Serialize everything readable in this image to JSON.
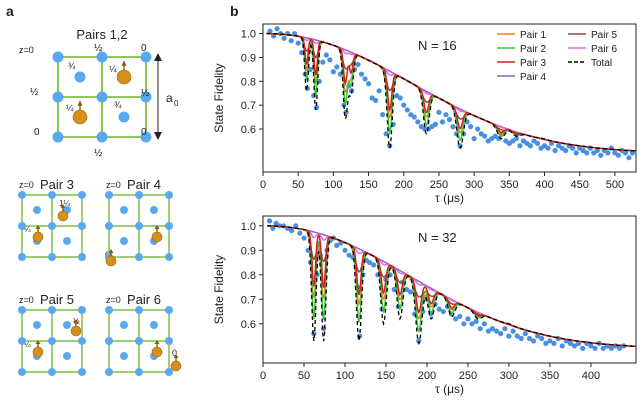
{
  "panel_a": {
    "label": "a",
    "top_title": "Pairs 1,2",
    "top_labels": {
      "z0": "z=0",
      "half": "½",
      "zero": "0",
      "q3": "¾",
      "q1": "¼",
      "q14": "1¼"
    },
    "lattice_const": "a",
    "lattice_sub": "0",
    "pairs": [
      {
        "title": "Pair 3",
        "z0": "z=0",
        "labels": [
          "1¼",
          "¼"
        ]
      },
      {
        "title": "Pair 4",
        "z0": "z=0",
        "labels": [
          "0"
        ]
      },
      {
        "title": "Pair 5",
        "z0": "z=0",
        "labels": [
          "½",
          "¼"
        ]
      },
      {
        "title": "Pair 6",
        "z0": "z=0",
        "labels": [
          "0"
        ]
      }
    ]
  },
  "panel_b": {
    "label": "b"
  },
  "colors": {
    "scatter": "#4a90e2",
    "lattice_line": "#7cc043",
    "atom": "#5aa9f0",
    "spin": "#d4901a",
    "pair1": "#f07f1d",
    "pair2": "#3cc43c",
    "pair3": "#d22020",
    "pair4": "#9060d0",
    "pair5": "#8c4a4a",
    "pair6": "#e070e0",
    "total": "#000000"
  },
  "chart_data": [
    {
      "type": "line",
      "title": "N = 16",
      "xlabel": "τ (μs)",
      "ylabel": "State Fidelity",
      "xlim": [
        0,
        530
      ],
      "ylim": [
        0.42,
        1.04
      ],
      "xticks": [
        0,
        50,
        100,
        150,
        200,
        250,
        300,
        350,
        400,
        450,
        500
      ],
      "yticks": [
        0.6,
        0.7,
        0.8,
        0.9,
        1.0
      ],
      "ytick_labels": [
        "0.6",
        "0.7",
        "0.8",
        "0.9",
        "1.0"
      ],
      "dips": [
        [
          62,
          0.76
        ],
        [
          75,
          0.68
        ],
        [
          117,
          0.65
        ],
        [
          125,
          0.75
        ],
        [
          180,
          0.52
        ],
        [
          232,
          0.58
        ],
        [
          280,
          0.52
        ],
        [
          338,
          0.56
        ],
        [
          360,
          0.57
        ],
        [
          398,
          0.56
        ]
      ],
      "envelope": {
        "center": 250,
        "width": 150,
        "floor": 0.5
      },
      "legend": [
        {
          "name": "Pair 1",
          "color": "#f07f1d",
          "dash": false
        },
        {
          "name": "Pair 5",
          "color": "#8c4a4a",
          "dash": false
        },
        {
          "name": "Pair 2",
          "color": "#3cc43c",
          "dash": false
        },
        {
          "name": "Pair 6",
          "color": "#e070e0",
          "dash": false
        },
        {
          "name": "Pair 3",
          "color": "#d22020",
          "dash": false
        },
        {
          "name": "Total",
          "color": "#000000",
          "dash": true
        },
        {
          "name": "Pair 4",
          "color": "#9060d0",
          "dash": false
        }
      ],
      "scatter_points": [
        [
          10,
          1.01
        ],
        [
          15,
          0.99
        ],
        [
          20,
          1.02
        ],
        [
          25,
          1.0
        ],
        [
          30,
          0.98
        ],
        [
          35,
          1.0
        ],
        [
          40,
          0.97
        ],
        [
          45,
          1.0
        ],
        [
          50,
          0.96
        ],
        [
          55,
          0.92
        ],
        [
          60,
          0.83
        ],
        [
          63,
          0.77
        ],
        [
          67,
          0.85
        ],
        [
          72,
          0.74
        ],
        [
          76,
          0.69
        ],
        [
          80,
          0.8
        ],
        [
          85,
          0.88
        ],
        [
          90,
          0.91
        ],
        [
          95,
          0.89
        ],
        [
          100,
          0.84
        ],
        [
          105,
          0.86
        ],
        [
          110,
          0.83
        ],
        [
          115,
          0.7
        ],
        [
          118,
          0.67
        ],
        [
          122,
          0.78
        ],
        [
          126,
          0.76
        ],
        [
          130,
          0.85
        ],
        [
          135,
          0.87
        ],
        [
          140,
          0.83
        ],
        [
          145,
          0.81
        ],
        [
          150,
          0.79
        ],
        [
          155,
          0.73
        ],
        [
          160,
          0.72
        ],
        [
          165,
          0.76
        ],
        [
          170,
          0.66
        ],
        [
          175,
          0.58
        ],
        [
          180,
          0.53
        ],
        [
          185,
          0.62
        ],
        [
          190,
          0.74
        ],
        [
          195,
          0.73
        ],
        [
          200,
          0.7
        ],
        [
          205,
          0.68
        ],
        [
          210,
          0.66
        ],
        [
          215,
          0.65
        ],
        [
          220,
          0.63
        ],
        [
          225,
          0.61
        ],
        [
          230,
          0.6
        ],
        [
          235,
          0.6
        ],
        [
          240,
          0.61
        ],
        [
          245,
          0.62
        ],
        [
          250,
          0.67
        ],
        [
          255,
          0.63
        ],
        [
          260,
          0.66
        ],
        [
          265,
          0.64
        ],
        [
          270,
          0.61
        ],
        [
          275,
          0.58
        ],
        [
          280,
          0.53
        ],
        [
          285,
          0.58
        ],
        [
          290,
          0.63
        ],
        [
          295,
          0.61
        ],
        [
          300,
          0.56
        ],
        [
          305,
          0.6
        ],
        [
          310,
          0.58
        ],
        [
          315,
          0.57
        ],
        [
          320,
          0.55
        ],
        [
          325,
          0.56
        ],
        [
          330,
          0.57
        ],
        [
          335,
          0.56
        ],
        [
          340,
          0.58
        ],
        [
          345,
          0.55
        ],
        [
          350,
          0.54
        ],
        [
          355,
          0.55
        ],
        [
          360,
          0.56
        ],
        [
          365,
          0.53
        ],
        [
          370,
          0.55
        ],
        [
          375,
          0.54
        ],
        [
          380,
          0.53
        ],
        [
          385,
          0.55
        ],
        [
          390,
          0.54
        ],
        [
          395,
          0.52
        ],
        [
          400,
          0.53
        ],
        [
          405,
          0.52
        ],
        [
          410,
          0.54
        ],
        [
          415,
          0.51
        ],
        [
          420,
          0.53
        ],
        [
          425,
          0.52
        ],
        [
          430,
          0.51
        ],
        [
          435,
          0.53
        ],
        [
          440,
          0.52
        ],
        [
          445,
          0.5
        ],
        [
          450,
          0.52
        ],
        [
          455,
          0.51
        ],
        [
          460,
          0.5
        ],
        [
          465,
          0.52
        ],
        [
          470,
          0.5
        ],
        [
          475,
          0.51
        ],
        [
          480,
          0.49
        ],
        [
          485,
          0.51
        ],
        [
          490,
          0.5
        ],
        [
          495,
          0.52
        ],
        [
          500,
          0.5
        ],
        [
          505,
          0.49
        ],
        [
          510,
          0.51
        ],
        [
          515,
          0.5
        ],
        [
          520,
          0.48
        ],
        [
          525,
          0.5
        ]
      ]
    },
    {
      "type": "line",
      "title": "N = 32",
      "xlabel": "τ (μs)",
      "ylabel": "State Fidelity",
      "xlim": [
        0,
        455
      ],
      "ylim": [
        0.44,
        1.04
      ],
      "xticks": [
        0,
        50,
        100,
        150,
        200,
        250,
        300,
        350,
        400
      ],
      "yticks": [
        0.6,
        0.7,
        0.8,
        0.9,
        1.0
      ],
      "ytick_labels": [
        "0.6",
        "0.7",
        "0.8",
        "0.9",
        "1.0"
      ],
      "dips": [
        [
          62,
          0.53
        ],
        [
          74,
          0.53
        ],
        [
          117,
          0.53
        ],
        [
          147,
          0.6
        ],
        [
          167,
          0.62
        ],
        [
          190,
          0.52
        ],
        [
          205,
          0.62
        ],
        [
          230,
          0.63
        ],
        [
          262,
          0.62
        ],
        [
          300,
          0.6
        ]
      ],
      "envelope": {
        "center": 215,
        "width": 120,
        "floor": 0.5
      },
      "scatter_points": [
        [
          8,
          1.02
        ],
        [
          12,
          0.99
        ],
        [
          16,
          1.01
        ],
        [
          20,
          1.0
        ],
        [
          25,
          1.0
        ],
        [
          30,
          0.99
        ],
        [
          35,
          0.98
        ],
        [
          40,
          1.0
        ],
        [
          45,
          0.97
        ],
        [
          50,
          0.95
        ],
        [
          55,
          0.9
        ],
        [
          58,
          0.85
        ],
        [
          62,
          0.56
        ],
        [
          66,
          0.8
        ],
        [
          70,
          0.88
        ],
        [
          74,
          0.58
        ],
        [
          78,
          0.9
        ],
        [
          82,
          0.94
        ],
        [
          86,
          0.95
        ],
        [
          90,
          0.92
        ],
        [
          95,
          0.93
        ],
        [
          100,
          0.9
        ],
        [
          105,
          0.88
        ],
        [
          110,
          0.87
        ],
        [
          115,
          0.75
        ],
        [
          118,
          0.55
        ],
        [
          122,
          0.8
        ],
        [
          126,
          0.86
        ],
        [
          130,
          0.85
        ],
        [
          135,
          0.84
        ],
        [
          140,
          0.8
        ],
        [
          145,
          0.66
        ],
        [
          150,
          0.78
        ],
        [
          155,
          0.8
        ],
        [
          160,
          0.74
        ],
        [
          165,
          0.67
        ],
        [
          170,
          0.77
        ],
        [
          175,
          0.74
        ],
        [
          180,
          0.73
        ],
        [
          185,
          0.64
        ],
        [
          190,
          0.53
        ],
        [
          195,
          0.65
        ],
        [
          200,
          0.7
        ],
        [
          205,
          0.64
        ],
        [
          210,
          0.68
        ],
        [
          215,
          0.66
        ],
        [
          220,
          0.65
        ],
        [
          225,
          0.67
        ],
        [
          230,
          0.64
        ],
        [
          235,
          0.62
        ],
        [
          240,
          0.63
        ],
        [
          245,
          0.6
        ],
        [
          250,
          0.62
        ],
        [
          255,
          0.6
        ],
        [
          260,
          0.61
        ],
        [
          265,
          0.58
        ],
        [
          270,
          0.6
        ],
        [
          275,
          0.57
        ],
        [
          280,
          0.58
        ],
        [
          285,
          0.57
        ],
        [
          290,
          0.56
        ],
        [
          295,
          0.58
        ],
        [
          300,
          0.55
        ],
        [
          305,
          0.57
        ],
        [
          310,
          0.55
        ],
        [
          315,
          0.54
        ],
        [
          320,
          0.56
        ],
        [
          325,
          0.54
        ],
        [
          330,
          0.53
        ],
        [
          335,
          0.55
        ],
        [
          340,
          0.54
        ],
        [
          345,
          0.52
        ],
        [
          350,
          0.53
        ],
        [
          355,
          0.52
        ],
        [
          360,
          0.54
        ],
        [
          365,
          0.51
        ],
        [
          370,
          0.53
        ],
        [
          375,
          0.52
        ],
        [
          380,
          0.51
        ],
        [
          385,
          0.52
        ],
        [
          390,
          0.5
        ],
        [
          395,
          0.52
        ],
        [
          400,
          0.51
        ],
        [
          405,
          0.5
        ],
        [
          410,
          0.52
        ],
        [
          415,
          0.5
        ],
        [
          420,
          0.51
        ],
        [
          425,
          0.5
        ],
        [
          430,
          0.51
        ],
        [
          435,
          0.5
        ],
        [
          440,
          0.51
        ]
      ]
    }
  ]
}
